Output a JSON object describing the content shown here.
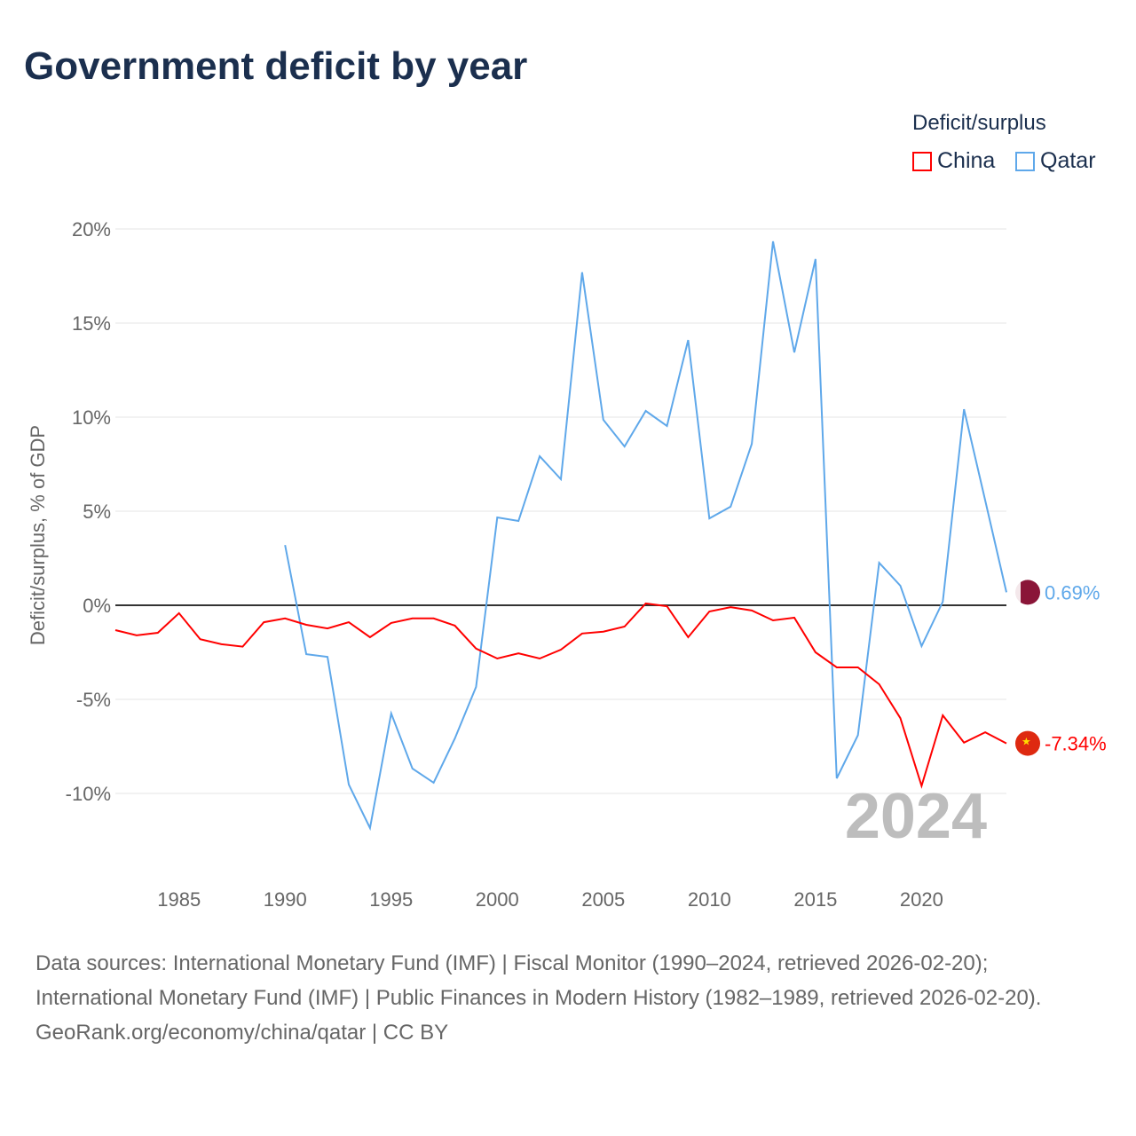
{
  "title": "Government deficit by year",
  "legend": {
    "title": "Deficit/surplus",
    "items": [
      {
        "name": "China",
        "color": "#ff0000"
      },
      {
        "name": "Qatar",
        "color": "#5fa8ea"
      }
    ]
  },
  "sources": {
    "line1": "Data sources: International Monetary Fund (IMF) | Fiscal Monitor (1990–2024, retrieved 2026-02-20); International Monetary Fund (IMF) | Public Finances in Modern History (1982–1989, retrieved 2026-02-20).",
    "line2": "GeoRank.org/economy/china/qatar | CC BY"
  },
  "chart_data": {
    "type": "line",
    "title": "Government deficit by year",
    "ylabel": "Deficit/surplus, % of GDP",
    "xlabel": "",
    "xlim": [
      1982,
      2024
    ],
    "ylim": [
      -14,
      20
    ],
    "yticks": [
      20,
      15,
      10,
      5,
      0,
      -5,
      -10
    ],
    "ytick_labels": [
      "20%",
      "15%",
      "10%",
      "5%",
      "0%",
      "-5%",
      "-10%"
    ],
    "xticks": [
      1985,
      1990,
      1995,
      2000,
      2005,
      2010,
      2015,
      2020
    ],
    "year_label": "2024",
    "series": [
      {
        "name": "China",
        "color": "#ff0000",
        "end_label": "-7.34%",
        "start": 1982,
        "values": [
          -1.32,
          -1.6,
          -1.46,
          -0.42,
          -1.8,
          -2.07,
          -2.2,
          -0.9,
          -0.7,
          -1.04,
          -1.23,
          -0.9,
          -1.7,
          -0.94,
          -0.7,
          -0.7,
          -1.08,
          -2.3,
          -2.83,
          -2.55,
          -2.83,
          -2.36,
          -1.5,
          -1.4,
          -1.13,
          0.1,
          -0.05,
          -1.7,
          -0.33,
          -0.1,
          -0.28,
          -0.8,
          -0.66,
          -2.5,
          -3.3,
          -3.3,
          -4.2,
          -6.0,
          -9.6,
          -5.85,
          -7.3,
          -6.75,
          -7.34
        ]
      },
      {
        "name": "Qatar",
        "color": "#5fa8ea",
        "end_label": "0.69%",
        "start": 1990,
        "values": [
          3.2,
          -2.6,
          -2.74,
          -9.53,
          -11.84,
          -5.75,
          -8.68,
          -9.43,
          -7.08,
          -4.34,
          4.67,
          4.48,
          7.92,
          6.7,
          17.7,
          9.86,
          8.44,
          10.33,
          9.53,
          14.1,
          4.62,
          5.24,
          8.58,
          19.34,
          13.44,
          18.4,
          -9.2,
          -6.9,
          2.26,
          1.04,
          -2.17,
          0.19,
          10.42,
          5.57,
          0.69
        ]
      }
    ]
  }
}
